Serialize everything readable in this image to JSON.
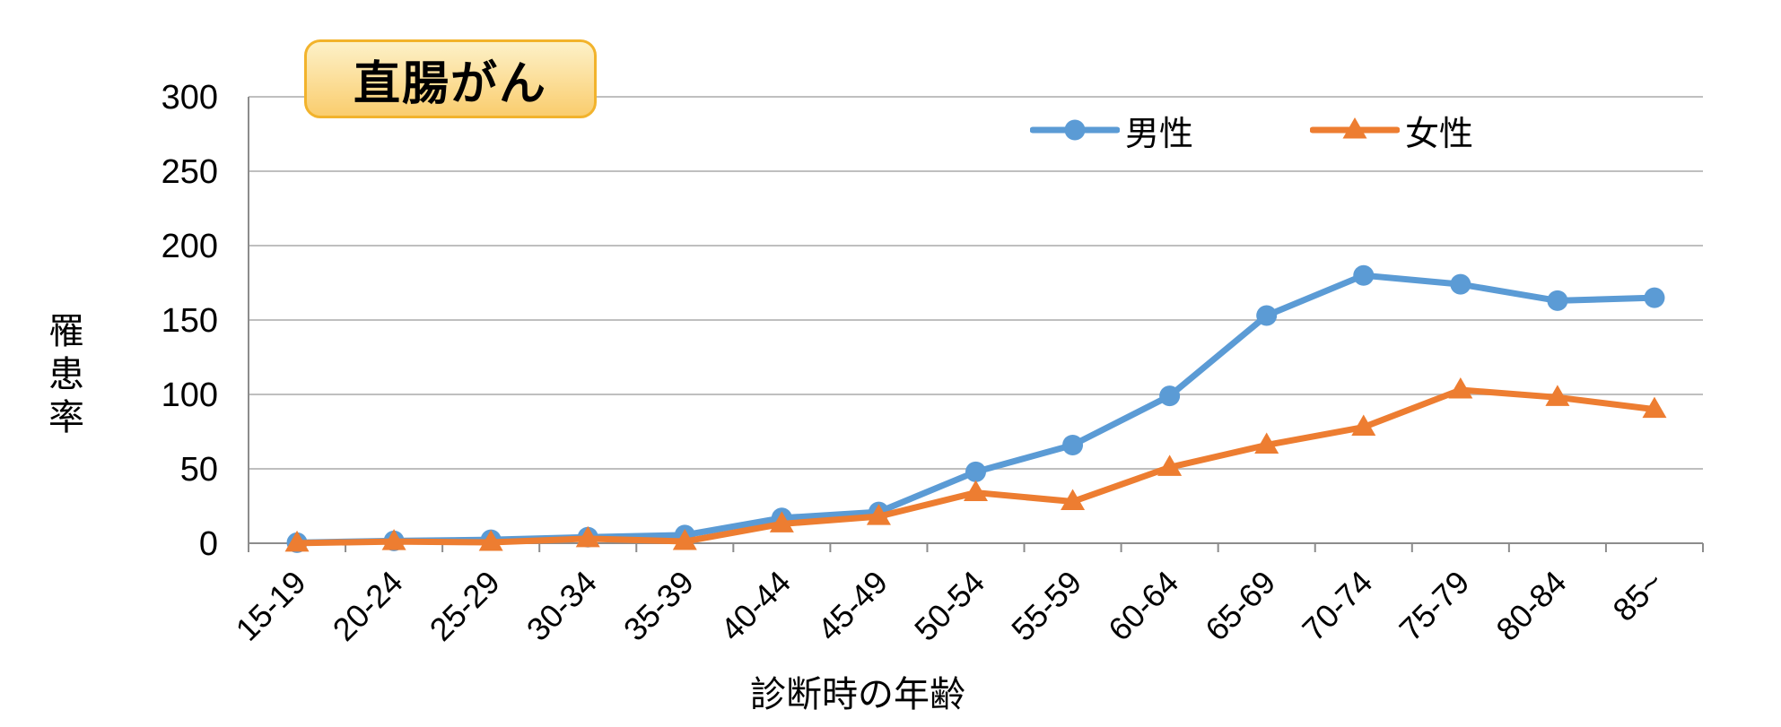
{
  "title_badge": {
    "label": "直腸がん"
  },
  "chart_data": {
    "type": "line",
    "title": "直腸がん",
    "categories": [
      "15-19",
      "20-24",
      "25-29",
      "30-34",
      "35-39",
      "40-44",
      "45-49",
      "50-54",
      "55-59",
      "60-64",
      "65-69",
      "70-74",
      "75-79",
      "80-84",
      "85~"
    ],
    "series": [
      {
        "name": "男性",
        "marker": "circle",
        "color": "#5B9BD5",
        "values": [
          0.4,
          1.6,
          2.3,
          4.1,
          5.5,
          17,
          21,
          48,
          66,
          99,
          153,
          180,
          174,
          163,
          165
        ]
      },
      {
        "name": "女性",
        "marker": "triangle",
        "color": "#ED7D31",
        "values": [
          0.1,
          1.1,
          0.6,
          3.1,
          1.2,
          13,
          18,
          34,
          28,
          51,
          66,
          78,
          103,
          98,
          90
        ]
      }
    ],
    "xlabel": "診断時の年齢",
    "ylabel": "罹患率",
    "ylim": [
      0,
      300
    ],
    "yticks": [
      0,
      50,
      100,
      150,
      200,
      250,
      300
    ],
    "grid": true,
    "legend_position": "top-right-inside"
  },
  "colors": {
    "gridline": "#BFBFBF",
    "axis_line": "#8C8C8C",
    "tick_text": "#000000",
    "badge_border": "#F2B32C",
    "badge_fill_top": "#FDF1C8",
    "badge_fill_bottom": "#FACD6E",
    "background": "#FFFFFF"
  }
}
